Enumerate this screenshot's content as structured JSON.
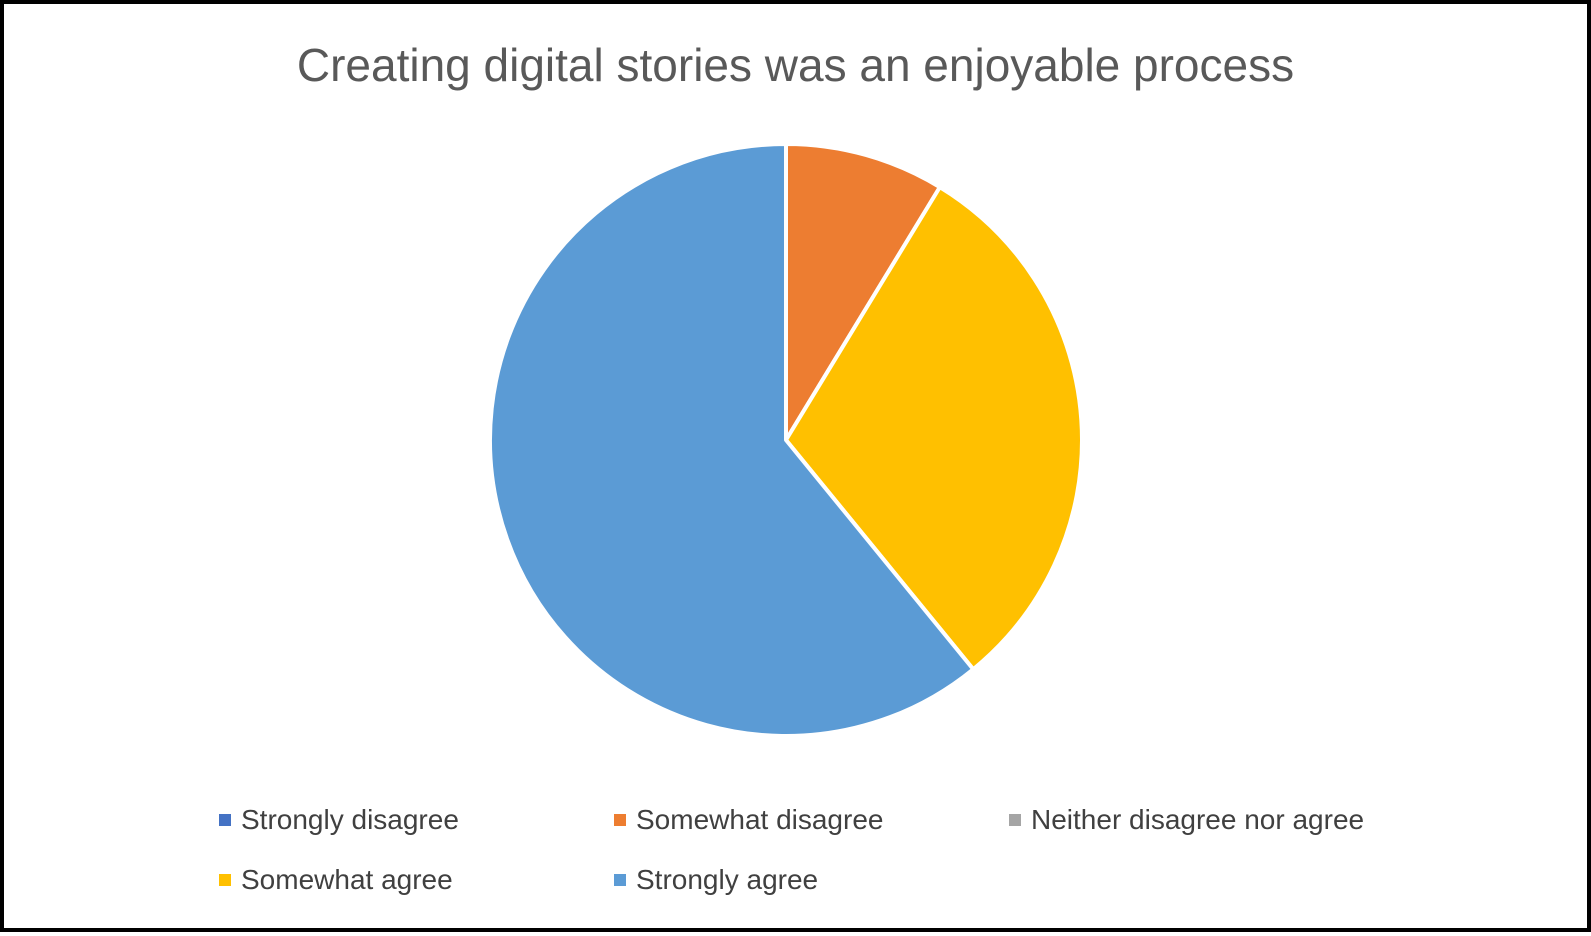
{
  "chart_data": {
    "type": "pie",
    "title": "Creating digital stories was an enjoyable process",
    "categories": [
      "Strongly disagree",
      "Somewhat disagree",
      "Neither disagree nor agree",
      "Somewhat agree",
      "Strongly agree"
    ],
    "values": [
      0,
      8.7,
      0,
      30.4,
      60.9
    ],
    "colors": [
      "#4472C4",
      "#ED7D31",
      "#A5A5A5",
      "#FFC000",
      "#5B9BD5"
    ],
    "legend_position": "bottom"
  }
}
